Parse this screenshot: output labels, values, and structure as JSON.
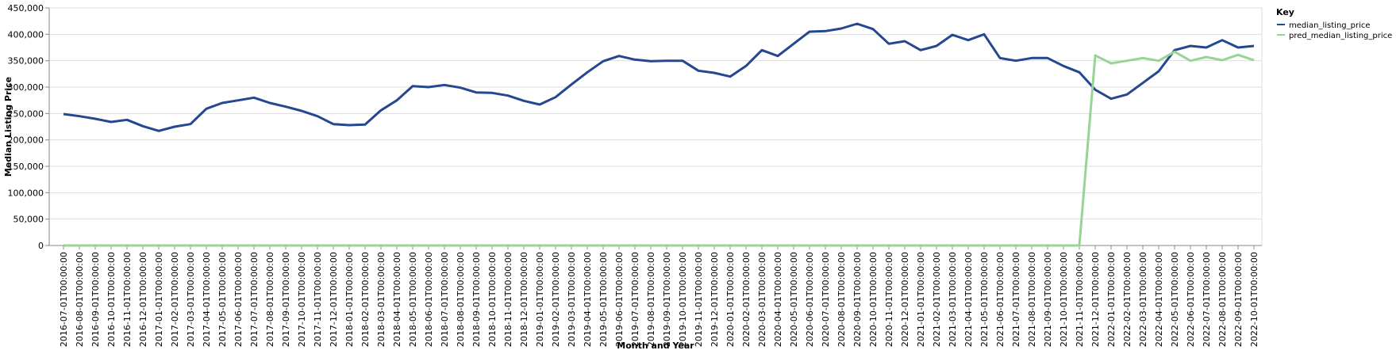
{
  "chart_data": {
    "type": "line",
    "xlabel": "Month and Year",
    "ylabel": "Median Listing Price",
    "ylim": [
      0,
      450000
    ],
    "yticks": [
      "0",
      "50,000",
      "100,000",
      "150,000",
      "200,000",
      "250,000",
      "300,000",
      "350,000",
      "400,000",
      "450,000"
    ],
    "grid": true,
    "legend": {
      "title": "Key",
      "placement": "top-right"
    },
    "x": [
      "2016-07-01T00:00:00",
      "2016-08-01T00:00:00",
      "2016-09-01T00:00:00",
      "2016-10-01T00:00:00",
      "2016-11-01T00:00:00",
      "2016-12-01T00:00:00",
      "2017-01-01T00:00:00",
      "2017-02-01T00:00:00",
      "2017-03-01T00:00:00",
      "2017-04-01T00:00:00",
      "2017-05-01T00:00:00",
      "2017-06-01T00:00:00",
      "2017-07-01T00:00:00",
      "2017-08-01T00:00:00",
      "2017-09-01T00:00:00",
      "2017-10-01T00:00:00",
      "2017-11-01T00:00:00",
      "2017-12-01T00:00:00",
      "2018-01-01T00:00:00",
      "2018-02-01T00:00:00",
      "2018-03-01T00:00:00",
      "2018-04-01T00:00:00",
      "2018-05-01T00:00:00",
      "2018-06-01T00:00:00",
      "2018-07-01T00:00:00",
      "2018-08-01T00:00:00",
      "2018-09-01T00:00:00",
      "2018-10-01T00:00:00",
      "2018-11-01T00:00:00",
      "2018-12-01T00:00:00",
      "2019-01-01T00:00:00",
      "2019-02-01T00:00:00",
      "2019-03-01T00:00:00",
      "2019-04-01T00:00:00",
      "2019-05-01T00:00:00",
      "2019-06-01T00:00:00",
      "2019-07-01T00:00:00",
      "2019-08-01T00:00:00",
      "2019-09-01T00:00:00",
      "2019-10-01T00:00:00",
      "2019-11-01T00:00:00",
      "2019-12-01T00:00:00",
      "2020-01-01T00:00:00",
      "2020-02-01T00:00:00",
      "2020-03-01T00:00:00",
      "2020-04-01T00:00:00",
      "2020-05-01T00:00:00",
      "2020-06-01T00:00:00",
      "2020-07-01T00:00:00",
      "2020-08-01T00:00:00",
      "2020-09-01T00:00:00",
      "2020-10-01T00:00:00",
      "2020-11-01T00:00:00",
      "2020-12-01T00:00:00",
      "2021-01-01T00:00:00",
      "2021-02-01T00:00:00",
      "2021-03-01T00:00:00",
      "2021-04-01T00:00:00",
      "2021-05-01T00:00:00",
      "2021-06-01T00:00:00",
      "2021-07-01T00:00:00",
      "2021-08-01T00:00:00",
      "2021-09-01T00:00:00",
      "2021-10-01T00:00:00",
      "2021-11-01T00:00:00",
      "2021-12-01T00:00:00",
      "2022-01-01T00:00:00",
      "2022-02-01T00:00:00",
      "2022-03-01T00:00:00",
      "2022-04-01T00:00:00",
      "2022-05-01T00:00:00",
      "2022-06-01T00:00:00",
      "2022-07-01T00:00:00",
      "2022-08-01T00:00:00",
      "2022-09-01T00:00:00",
      "2022-10-01T00:00:00"
    ],
    "series": [
      {
        "name": "median_listing_price",
        "color": "#24478f",
        "values": [
          249000,
          245000,
          240000,
          234000,
          238000,
          226000,
          217000,
          225000,
          230000,
          259000,
          270000,
          275000,
          280000,
          270000,
          263000,
          255000,
          245000,
          230000,
          228000,
          229000,
          256000,
          275000,
          302000,
          300000,
          304000,
          299000,
          290000,
          289000,
          284000,
          274000,
          267000,
          281000,
          305000,
          328000,
          349000,
          359000,
          352000,
          349000,
          350000,
          350000,
          331000,
          327000,
          320000,
          340000,
          370000,
          359000,
          382000,
          405000,
          406000,
          411000,
          420000,
          410000,
          382000,
          387000,
          370000,
          378000,
          399000,
          389000,
          400000,
          355000,
          350000,
          355000,
          355000,
          340000,
          328000,
          295000,
          278000,
          286000,
          308000,
          330000,
          370000,
          378000,
          375000,
          389000,
          375000,
          378000
        ]
      },
      {
        "name": "pred_median_listing_price",
        "color": "#98d493",
        "values": [
          0,
          0,
          0,
          0,
          0,
          0,
          0,
          0,
          0,
          0,
          0,
          0,
          0,
          0,
          0,
          0,
          0,
          0,
          0,
          0,
          0,
          0,
          0,
          0,
          0,
          0,
          0,
          0,
          0,
          0,
          0,
          0,
          0,
          0,
          0,
          0,
          0,
          0,
          0,
          0,
          0,
          0,
          0,
          0,
          0,
          0,
          0,
          0,
          0,
          0,
          0,
          0,
          0,
          0,
          0,
          0,
          0,
          0,
          0,
          0,
          0,
          0,
          0,
          0,
          0,
          360000,
          345000,
          350000,
          355000,
          350000,
          367000,
          350000,
          357000,
          351000,
          361000,
          351000
        ]
      }
    ]
  }
}
